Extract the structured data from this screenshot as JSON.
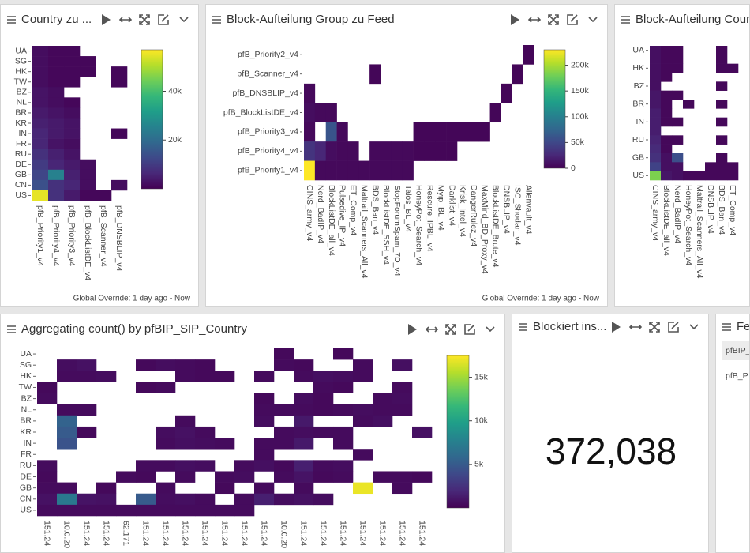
{
  "chart_data": [
    {
      "type": "heatmap",
      "title": "Country zu ...",
      "footer": "Global Override: 1 day ago - Now",
      "colorscale": "viridis",
      "x": [
        "pfB_Priority1_v4",
        "pfB_Priority4_v4",
        "pfB_Priority3_v4",
        "pfB_BlockListDE_v4",
        "pfB_Scanner_v4",
        "pfB_DNSBLIP_v4"
      ],
      "y": [
        "UA",
        "SG",
        "HK",
        "TW",
        "BZ",
        "NL",
        "BR",
        "KR",
        "IN",
        "FR",
        "RU",
        "DE",
        "GB",
        "CN",
        "US"
      ],
      "values": [
        [
          2000,
          1000,
          1000,
          null,
          null,
          null
        ],
        [
          2000,
          1000,
          1000,
          1000,
          null,
          null
        ],
        [
          2000,
          1000,
          1000,
          1000,
          null,
          1000
        ],
        [
          2000,
          1000,
          1000,
          null,
          null,
          1000
        ],
        [
          3000,
          2000,
          null,
          null,
          null,
          null
        ],
        [
          3000,
          2000,
          1000,
          null,
          null,
          null
        ],
        [
          4000,
          3000,
          2000,
          null,
          null,
          null
        ],
        [
          5000,
          4000,
          3000,
          null,
          null,
          null
        ],
        [
          6000,
          4000,
          3000,
          null,
          null,
          1000
        ],
        [
          6000,
          3000,
          2000,
          null,
          null,
          null
        ],
        [
          8000,
          5000,
          3000,
          null,
          null,
          null
        ],
        [
          10000,
          6000,
          4000,
          2000,
          null,
          null
        ],
        [
          12000,
          25000,
          5000,
          2000,
          null,
          null
        ],
        [
          14000,
          8000,
          6000,
          2000,
          null,
          2000
        ],
        [
          55000,
          8000,
          4000,
          1000,
          1000,
          null
        ]
      ],
      "zlim": [
        0,
        57000
      ],
      "zticks": [
        {
          "value": 20000,
          "label": "20k"
        },
        {
          "value": 40000,
          "label": "40k"
        }
      ]
    },
    {
      "type": "heatmap",
      "title": "Block-Aufteilung Group zu Feed",
      "footer": "Global Override: 1 day ago - Now",
      "colorscale": "viridis",
      "x": [
        "CINS_army_v4",
        "Nerd_BadIP_v4",
        "BlockListDE_all_v4",
        "Pulsedive_IP_v4",
        "ET_Comp_v4",
        "Maltrail_Scanners_All_v4",
        "BDS_Ban_v4",
        "BlockListDE_SSH_v4",
        "StopForumSpam_7D_v4",
        "Talos_BL_v4",
        "HoneyPot_Search_v4",
        "Rescure_IPBL_v4",
        "Myip_BL_v4",
        "Darklist_v4",
        "Krisk_Intel_v4",
        "DangerRulez_v4",
        "MaxMind_BD_Proxy_v4",
        "BlockListDE_Brute_v4",
        "DNSBLIP_v4",
        "ISC_Shodan_v4",
        "Allenvault_v4"
      ],
      "y": [
        "pfB_Priority2_v4",
        "pfB_Scanner_v4",
        "pfB_DNSBLIP_v4",
        "pfB_BlockListDE_v4",
        "pfB_Priority3_v4",
        "pfB_Priority4_v4",
        "pfB_Priority1_v4"
      ],
      "values": [
        [
          null,
          null,
          null,
          null,
          null,
          null,
          null,
          null,
          null,
          null,
          null,
          null,
          null,
          null,
          null,
          null,
          null,
          null,
          null,
          null,
          3000
        ],
        [
          null,
          null,
          null,
          null,
          null,
          null,
          3000,
          null,
          null,
          null,
          null,
          null,
          null,
          null,
          null,
          null,
          null,
          null,
          null,
          3000,
          null
        ],
        [
          5000,
          null,
          null,
          null,
          null,
          null,
          null,
          null,
          null,
          null,
          null,
          null,
          null,
          null,
          null,
          null,
          null,
          null,
          3000,
          null,
          null
        ],
        [
          8000,
          5000,
          5000,
          null,
          null,
          null,
          null,
          null,
          null,
          null,
          null,
          null,
          null,
          null,
          null,
          null,
          null,
          3000,
          null,
          null,
          null
        ],
        [
          5000,
          null,
          60000,
          5000,
          null,
          null,
          null,
          null,
          null,
          null,
          3000,
          3000,
          3000,
          3000,
          3000,
          3000,
          3000,
          null,
          null,
          null,
          null
        ],
        [
          35000,
          25000,
          8000,
          5000,
          5000,
          null,
          5000,
          5000,
          5000,
          5000,
          3000,
          3000,
          3000,
          3000,
          null,
          null,
          null,
          null,
          null,
          null,
          null
        ],
        [
          230000,
          5000,
          5000,
          5000,
          5000,
          5000,
          5000,
          5000,
          5000,
          5000,
          null,
          null,
          null,
          null,
          null,
          null,
          null,
          null,
          null,
          null,
          null
        ]
      ],
      "zlim": [
        0,
        230000
      ],
      "zticks": [
        0,
        {
          "value": 50000,
          "label": "50k"
        },
        {
          "value": 100000,
          "label": "100k"
        },
        {
          "value": 150000,
          "label": "150k"
        },
        {
          "value": 200000,
          "label": "200k"
        }
      ]
    },
    {
      "type": "heatmap",
      "title": "Block-Aufteilung Coun",
      "colorscale": "viridis",
      "x": [
        "CINS_army_v4",
        "BlockListDE_all_v4",
        "Nerd_BadIP_v4",
        "HoneyPot_Search_v4",
        "Maltrail_Scanners_All_v4",
        "DNSBLIP_v4",
        "BDS_Ban_v4",
        "ET_Comp_v4"
      ],
      "y": [
        "UA",
        null,
        "HK",
        null,
        "BZ",
        null,
        "BR",
        null,
        "IN",
        null,
        "RU",
        null,
        "GB",
        null,
        "US"
      ],
      "values": [
        [
          2000,
          1000,
          1000,
          null,
          null,
          null,
          1000,
          null
        ],
        [
          2000,
          1000,
          1000,
          null,
          null,
          null,
          1000,
          null
        ],
        [
          2000,
          1000,
          1000,
          null,
          null,
          null,
          1000,
          1000
        ],
        [
          2000,
          1000,
          null,
          null,
          null,
          null,
          null,
          null
        ],
        [
          2000,
          null,
          null,
          null,
          null,
          null,
          1000,
          null
        ],
        [
          3000,
          1000,
          1000,
          null,
          null,
          null,
          null,
          null
        ],
        [
          3000,
          1000,
          null,
          1000,
          null,
          null,
          1000,
          null
        ],
        [
          4000,
          1000,
          null,
          null,
          null,
          null,
          null,
          null
        ],
        [
          4000,
          1000,
          1000,
          null,
          null,
          null,
          1000,
          null
        ],
        [
          4000,
          null,
          null,
          null,
          null,
          null,
          null,
          null
        ],
        [
          5000,
          1000,
          1000,
          null,
          null,
          null,
          1000,
          null
        ],
        [
          6000,
          1000,
          null,
          null,
          null,
          null,
          null,
          null
        ],
        [
          7000,
          2000,
          12000,
          null,
          null,
          null,
          1000,
          null
        ],
        [
          10000,
          2000,
          2000,
          null,
          null,
          1000,
          1000,
          1000
        ],
        [
          40000,
          3000,
          2000,
          1000,
          1000,
          1000,
          1000,
          1000
        ]
      ],
      "zlim": [
        0,
        50000
      ]
    },
    {
      "type": "heatmap",
      "title": "Aggregating count() by pfBIP_SIP_Country",
      "colorscale": "viridis",
      "x": [
        "151.24",
        "10.0.20",
        "151.24",
        "151.24",
        "62.171",
        "151.24",
        "151.24",
        "151.24",
        "151.24",
        "151.24",
        "151.24",
        "151.24",
        "10.0.20",
        "151.24",
        "151.24",
        "151.24",
        "151.24",
        "151.24",
        "151.24",
        "151.24"
      ],
      "y": [
        "UA",
        "SG",
        "HK",
        "TW",
        "BZ",
        "NL",
        "BR",
        "KR",
        "IN",
        "FR",
        "RU",
        "DE",
        "GB",
        "CN",
        "US"
      ],
      "values": [
        [
          null,
          null,
          null,
          null,
          null,
          null,
          null,
          null,
          null,
          null,
          null,
          null,
          400,
          null,
          null,
          400,
          null,
          null,
          null,
          null
        ],
        [
          null,
          600,
          800,
          null,
          null,
          400,
          600,
          500,
          400,
          null,
          null,
          null,
          500,
          400,
          null,
          null,
          500,
          null,
          700,
          null
        ],
        [
          null,
          500,
          500,
          600,
          null,
          null,
          null,
          500,
          400,
          400,
          null,
          500,
          null,
          500,
          700,
          600,
          500,
          null,
          null,
          null
        ],
        [
          400,
          null,
          null,
          null,
          null,
          400,
          500,
          null,
          null,
          null,
          null,
          null,
          null,
          null,
          500,
          400,
          null,
          null,
          500,
          null
        ],
        [
          500,
          null,
          null,
          null,
          null,
          null,
          null,
          null,
          null,
          null,
          null,
          400,
          null,
          600,
          400,
          null,
          null,
          500,
          600,
          null
        ],
        [
          null,
          500,
          500,
          null,
          null,
          null,
          null,
          null,
          null,
          null,
          null,
          500,
          500,
          500,
          400,
          500,
          600,
          500,
          500,
          null
        ],
        [
          null,
          5500,
          null,
          null,
          null,
          null,
          null,
          500,
          null,
          null,
          null,
          600,
          null,
          1200,
          null,
          null,
          500,
          700,
          null,
          null
        ],
        [
          null,
          5000,
          400,
          null,
          null,
          null,
          600,
          800,
          500,
          null,
          null,
          null,
          500,
          600,
          500,
          500,
          null,
          null,
          null,
          800
        ],
        [
          null,
          4500,
          null,
          null,
          null,
          null,
          500,
          700,
          600,
          500,
          null,
          500,
          500,
          1200,
          null,
          500,
          null,
          null,
          null,
          null
        ],
        [
          null,
          null,
          null,
          null,
          null,
          null,
          null,
          null,
          null,
          null,
          null,
          500,
          null,
          null,
          null,
          null,
          500,
          null,
          null,
          null
        ],
        [
          500,
          null,
          null,
          null,
          null,
          500,
          500,
          700,
          600,
          null,
          500,
          700,
          400,
          1500,
          500,
          600,
          null,
          null,
          null,
          null
        ],
        [
          400,
          null,
          null,
          null,
          500,
          400,
          null,
          500,
          null,
          500,
          600,
          null,
          500,
          900,
          400,
          500,
          null,
          500,
          500,
          400
        ],
        [
          500,
          500,
          null,
          400,
          null,
          null,
          500,
          null,
          null,
          400,
          null,
          500,
          null,
          500,
          null,
          null,
          17000,
          null,
          500,
          null
        ],
        [
          800,
          7000,
          900,
          800,
          null,
          5000,
          600,
          700,
          500,
          null,
          500,
          1500,
          600,
          800,
          600,
          null,
          null,
          null,
          null,
          null
        ],
        [
          500,
          500,
          500,
          500,
          500,
          500,
          500,
          500,
          500,
          500,
          500,
          null,
          null,
          null,
          null,
          null,
          null,
          null,
          null,
          null
        ]
      ],
      "zlim": [
        0,
        17500
      ],
      "zticks": [
        {
          "value": 5000,
          "label": "5k"
        },
        {
          "value": 10000,
          "label": "10k"
        },
        {
          "value": 15000,
          "label": "15k"
        }
      ]
    }
  ],
  "kpi": {
    "title": "Blockiert ins...",
    "value": 372038,
    "value_label": "372,038"
  },
  "table_panel": {
    "title": "Fe",
    "rows": [
      "pfBIP_",
      "pfB_P"
    ]
  }
}
